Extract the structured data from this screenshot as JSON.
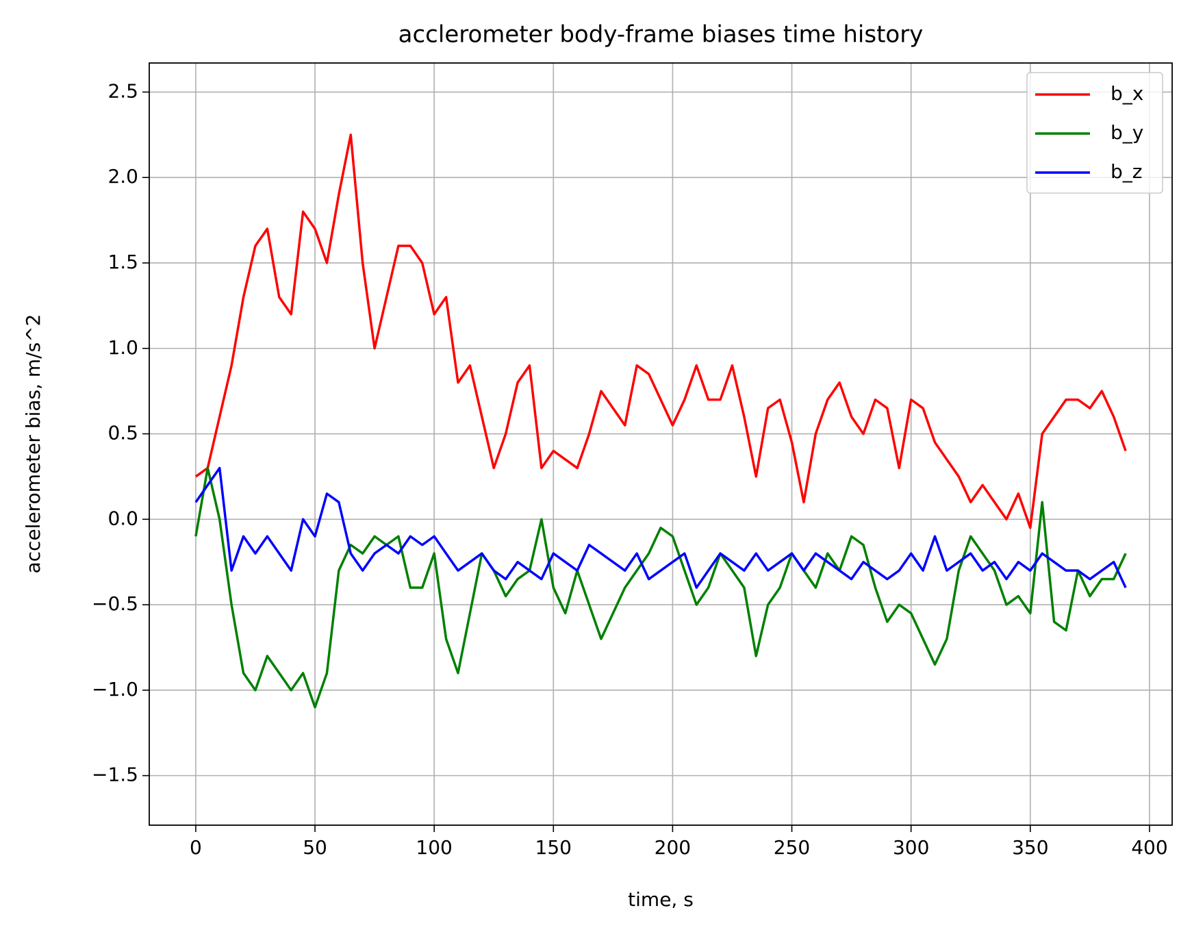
{
  "chart_data": {
    "type": "line",
    "title": "acclerometer body-frame biases time history",
    "xlabel": "time, s",
    "ylabel": "accelerometer bias, m/s^2",
    "x": [
      0,
      5,
      10,
      15,
      20,
      25,
      30,
      35,
      40,
      45,
      50,
      55,
      60,
      65,
      70,
      75,
      80,
      85,
      90,
      95,
      100,
      105,
      110,
      115,
      120,
      125,
      130,
      135,
      140,
      145,
      150,
      155,
      160,
      165,
      170,
      175,
      180,
      185,
      190,
      195,
      200,
      205,
      210,
      215,
      220,
      225,
      230,
      235,
      240,
      245,
      250,
      255,
      260,
      265,
      270,
      275,
      280,
      285,
      290,
      295,
      300,
      305,
      310,
      315,
      320,
      325,
      330,
      335,
      340,
      345,
      350,
      355,
      360,
      365,
      370,
      375,
      380,
      385,
      390
    ],
    "series": [
      {
        "name": "b_x",
        "color": "#ff0000",
        "values": [
          0.25,
          0.3,
          0.6,
          0.9,
          1.3,
          1.6,
          1.7,
          1.3,
          1.2,
          1.8,
          1.7,
          1.5,
          1.9,
          2.25,
          1.5,
          1.0,
          1.3,
          1.6,
          1.6,
          1.5,
          1.2,
          1.3,
          0.8,
          0.9,
          0.6,
          0.3,
          0.5,
          0.8,
          0.9,
          0.3,
          0.4,
          0.35,
          0.3,
          0.5,
          0.75,
          0.65,
          0.55,
          0.9,
          0.85,
          0.7,
          0.55,
          0.7,
          0.9,
          0.7,
          0.7,
          0.9,
          0.6,
          0.25,
          0.65,
          0.7,
          0.45,
          0.1,
          0.5,
          0.7,
          0.8,
          0.6,
          0.5,
          0.7,
          0.65,
          0.3,
          0.7,
          0.65,
          0.45,
          0.35,
          0.25,
          0.1,
          0.2,
          0.1,
          0.0,
          0.15,
          -0.05,
          0.5,
          0.6,
          0.7,
          0.7,
          0.65,
          0.75,
          0.6,
          0.4
        ]
      },
      {
        "name": "b_y",
        "color": "#008000",
        "values": [
          -0.1,
          0.3,
          0.0,
          -0.5,
          -0.9,
          -1.0,
          -0.8,
          -0.9,
          -1.0,
          -0.9,
          -1.1,
          -0.9,
          -0.3,
          -0.15,
          -0.2,
          -0.1,
          -0.15,
          -0.1,
          -0.4,
          -0.4,
          -0.2,
          -0.7,
          -0.9,
          -0.55,
          -0.2,
          -0.3,
          -0.45,
          -0.35,
          -0.3,
          0.0,
          -0.4,
          -0.55,
          -0.3,
          -0.5,
          -0.7,
          -0.55,
          -0.4,
          -0.3,
          -0.2,
          -0.05,
          -0.1,
          -0.3,
          -0.5,
          -0.4,
          -0.2,
          -0.3,
          -0.4,
          -0.8,
          -0.5,
          -0.4,
          -0.2,
          -0.3,
          -0.4,
          -0.2,
          -0.3,
          -0.1,
          -0.15,
          -0.4,
          -0.6,
          -0.5,
          -0.55,
          -0.7,
          -0.85,
          -0.7,
          -0.3,
          -0.1,
          -0.2,
          -0.3,
          -0.5,
          -0.45,
          -0.55,
          0.1,
          -0.6,
          -0.65,
          -0.3,
          -0.45,
          -0.35,
          -0.35,
          -0.2
        ]
      },
      {
        "name": "b_z",
        "color": "#0000ff",
        "values": [
          0.1,
          0.2,
          0.3,
          -0.3,
          -0.1,
          -0.2,
          -0.1,
          -0.2,
          -0.3,
          0.0,
          -0.1,
          0.15,
          0.1,
          -0.2,
          -0.3,
          -0.2,
          -0.15,
          -0.2,
          -0.1,
          -0.15,
          -0.1,
          -0.2,
          -0.3,
          -0.25,
          -0.2,
          -0.3,
          -0.35,
          -0.25,
          -0.3,
          -0.35,
          -0.2,
          -0.25,
          -0.3,
          -0.15,
          -0.2,
          -0.25,
          -0.3,
          -0.2,
          -0.35,
          -0.3,
          -0.25,
          -0.2,
          -0.4,
          -0.3,
          -0.2,
          -0.25,
          -0.3,
          -0.2,
          -0.3,
          -0.25,
          -0.2,
          -0.3,
          -0.2,
          -0.25,
          -0.3,
          -0.35,
          -0.25,
          -0.3,
          -0.35,
          -0.3,
          -0.2,
          -0.3,
          -0.1,
          -0.3,
          -0.25,
          -0.2,
          -0.3,
          -0.25,
          -0.35,
          -0.25,
          -0.3,
          -0.2,
          -0.25,
          -0.3,
          -0.3,
          -0.35,
          -0.3,
          -0.25,
          -0.4
        ]
      }
    ],
    "xlim": [
      -19.5,
      409.5
    ],
    "ylim": [
      -1.79,
      2.67
    ],
    "xticks": [
      0,
      50,
      100,
      150,
      200,
      250,
      300,
      350,
      400
    ],
    "yticks": [
      {
        "value": -1.5,
        "label": "−1.5"
      },
      {
        "value": -1,
        "label": "−1.0"
      },
      {
        "value": -0.5,
        "label": "−0.5"
      },
      {
        "value": 0,
        "label": "0.0"
      },
      0.5,
      {
        "value": 1,
        "label": "1.0"
      },
      1.5,
      {
        "value": 2,
        "label": "2.0"
      },
      2.5
    ],
    "grid": true,
    "legend": "upper right"
  }
}
